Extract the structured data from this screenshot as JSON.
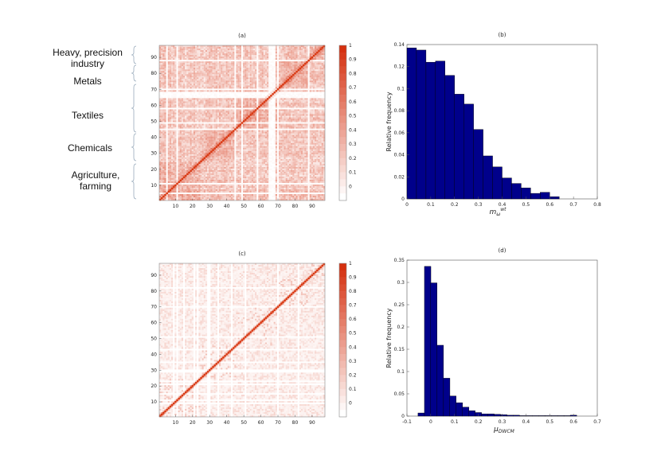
{
  "sector_labels": [
    {
      "name": "sector-label-heavy",
      "line1": "Heavy, precision",
      "line2": "industry"
    },
    {
      "name": "sector-label-metals",
      "line1": "Metals",
      "line2": ""
    },
    {
      "name": "sector-label-textiles",
      "line1": "Textiles",
      "line2": ""
    },
    {
      "name": "sector-label-chemicals",
      "line1": "Chemicals",
      "line2": ""
    },
    {
      "name": "sector-label-agriculture",
      "line1": "Agriculture,",
      "line2": "farming"
    }
  ],
  "colors": {
    "bar": "#00008b",
    "diagonal": "#d93a14",
    "heat_low": "#ffffff",
    "heat_high": "#d5300f"
  },
  "chart_data": [
    {
      "id": "a",
      "type": "heatmap",
      "title": "(a)",
      "n": 97,
      "xticks": [
        10,
        20,
        30,
        40,
        50,
        60,
        70,
        80,
        90
      ],
      "yticks": [
        10,
        20,
        30,
        40,
        50,
        60,
        70,
        80,
        90
      ],
      "colorbar_ticks": [
        "1",
        "0.9",
        "0.8",
        "0.7",
        "0.6",
        "0.5",
        "0.4",
        "0.3",
        "0.2",
        "0.1",
        "0"
      ],
      "clim": [
        -0.1,
        1
      ],
      "density": "dense",
      "sector_blocks": [
        [
          1,
          24
        ],
        [
          25,
          45
        ],
        [
          46,
          70
        ],
        [
          71,
          87
        ],
        [
          88,
          97
        ]
      ]
    },
    {
      "id": "b",
      "type": "bar",
      "title": "(b)",
      "xlabel": "m_ω^{wt}",
      "ylabel": "Relative frequency",
      "xlim": [
        0,
        0.8
      ],
      "ylim": [
        0,
        0.14
      ],
      "xticks": [
        "0",
        "0.1",
        "0.2",
        "0.3",
        "0.4",
        "0.5",
        "0.6",
        "0.7",
        "0.8"
      ],
      "yticks": [
        "0",
        "0.02",
        "0.04",
        "0.06",
        "0.08",
        "0.1",
        "0.12",
        "0.14"
      ],
      "bin_width": 0.04,
      "x": [
        0.02,
        0.06,
        0.1,
        0.14,
        0.18,
        0.22,
        0.26,
        0.3,
        0.34,
        0.38,
        0.42,
        0.46,
        0.5,
        0.54,
        0.58,
        0.62
      ],
      "values": [
        0.137,
        0.135,
        0.124,
        0.125,
        0.112,
        0.095,
        0.086,
        0.063,
        0.039,
        0.029,
        0.019,
        0.014,
        0.01,
        0.005,
        0.006,
        0.002
      ]
    },
    {
      "id": "c",
      "type": "heatmap",
      "title": "(c)",
      "n": 97,
      "xticks": [
        10,
        20,
        30,
        40,
        50,
        60,
        70,
        80,
        90
      ],
      "yticks": [
        10,
        20,
        30,
        40,
        50,
        60,
        70,
        80,
        90
      ],
      "colorbar_ticks": [
        "1",
        "0.9",
        "0.8",
        "0.7",
        "0.6",
        "0.5",
        "0.4",
        "0.3",
        "0.2",
        "0.1",
        "0"
      ],
      "clim": [
        -0.1,
        1
      ],
      "density": "sparse",
      "sector_blocks": [
        [
          1,
          24
        ],
        [
          25,
          45
        ],
        [
          46,
          70
        ],
        [
          71,
          87
        ],
        [
          88,
          97
        ]
      ]
    },
    {
      "id": "d",
      "type": "bar",
      "title": "(d)",
      "xlabel": "μ_DWCM",
      "ylabel": "Relative frequency",
      "xlim": [
        -0.1,
        0.7
      ],
      "ylim": [
        0,
        0.35
      ],
      "xticks": [
        "-0.1",
        "0",
        "0.1",
        "0.2",
        "0.3",
        "0.4",
        "0.5",
        "0.6",
        "0.7"
      ],
      "yticks": [
        "0",
        "0.05",
        "0.1",
        "0.15",
        "0.2",
        "0.25",
        "0.3",
        "0.35"
      ],
      "bin_width": 0.027,
      "x": [
        -0.04,
        -0.013,
        0.013,
        0.04,
        0.067,
        0.093,
        0.12,
        0.147,
        0.173,
        0.2,
        0.227,
        0.253,
        0.28,
        0.307,
        0.333,
        0.36,
        0.387,
        0.413,
        0.44,
        0.467,
        0.493,
        0.52,
        0.547,
        0.573,
        0.6
      ],
      "values": [
        0.007,
        0.336,
        0.299,
        0.159,
        0.085,
        0.045,
        0.03,
        0.02,
        0.012,
        0.008,
        0.005,
        0.005,
        0.004,
        0.003,
        0.002,
        0.002,
        0.001,
        0.001,
        0.001,
        0.001,
        0.001,
        0.001,
        0.001,
        0.001,
        0.002
      ]
    }
  ]
}
